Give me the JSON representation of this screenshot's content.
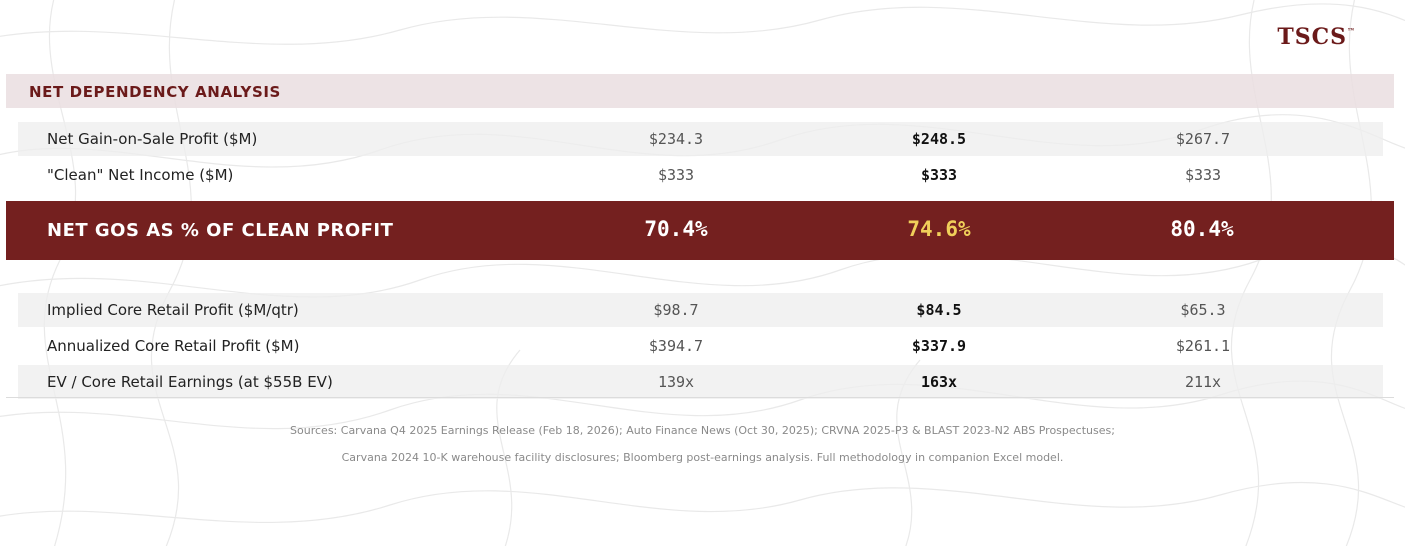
{
  "brand": {
    "name": "TSCS",
    "mark": "™"
  },
  "section": {
    "title": "NET DEPENDENCY ANALYSIS"
  },
  "rows_top": [
    {
      "label": "Net Gain-on-Sale Profit ($M)",
      "values": [
        "$234.3",
        "$248.5",
        "$267.7"
      ]
    },
    {
      "label": "\"Clean\" Net Income ($M)",
      "values": [
        "$333",
        "$333",
        "$333"
      ]
    }
  ],
  "highlight": {
    "label": "NET GOS AS % OF CLEAN PROFIT",
    "values": [
      "70.4%",
      "74.6%",
      "80.4%"
    ]
  },
  "rows_bottom": [
    {
      "label": "Implied Core Retail Profit ($M/qtr)",
      "values": [
        "$98.7",
        "$84.5",
        "$65.3"
      ]
    },
    {
      "label": "Annualized Core Retail Profit ($M)",
      "values": [
        "$394.7",
        "$337.9",
        "$261.1"
      ]
    },
    {
      "label": "EV / Core Retail Earnings (at $55B EV)",
      "values": [
        "139x",
        "163x",
        "211x"
      ]
    }
  ],
  "sources": {
    "line1": "Sources: Carvana Q4 2025 Earnings Release (Feb 18, 2026); Auto Finance News (Oct 30, 2025); CRVNA 2025-P3 & BLAST 2023-N2 ABS Prospectuses;",
    "line2": "Carvana 2024 10-K warehouse facility disclosures; Bloomberg post-earnings analysis. Full methodology in companion Excel model."
  },
  "colors": {
    "brand": "#6b1a1a",
    "highlight_bg": "#74201f",
    "highlight_accent": "#f0cf5a",
    "header_bg": "#eadee0"
  }
}
